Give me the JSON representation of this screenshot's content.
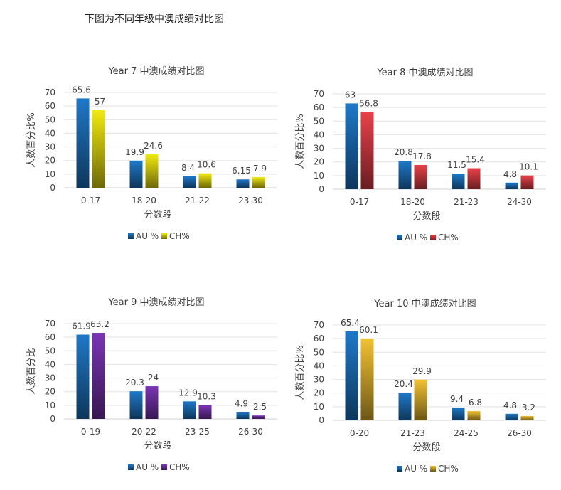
{
  "page_title": "下图为不同年级中澳成绩对比图",
  "colors": {
    "au": "#1F78C8",
    "ch_year7": "#F2EA10",
    "ch_year8": "#E8424A",
    "ch_year9": "#7B35B5",
    "ch_year10": "#F2C233"
  },
  "chart_data": [
    {
      "type": "bar",
      "title": "Year 7 中澳成绩对比图",
      "xlabel": "分数段",
      "ylabel": "人数百分比%",
      "ylim": [
        0,
        70
      ],
      "yticks": [
        0,
        10,
        20,
        30,
        40,
        50,
        60,
        70
      ],
      "grid": true,
      "legend_position": "bottom",
      "categories": [
        "0-17",
        "18-20",
        "21-22",
        "23-30"
      ],
      "series": [
        {
          "name": "AU %",
          "values": [
            65.6,
            19.9,
            8.4,
            6.15
          ],
          "labels": [
            "65.6",
            "19.9",
            "8.4",
            "6.15"
          ]
        },
        {
          "name": "CH%",
          "values": [
            57,
            24.6,
            10.6,
            7.9
          ],
          "labels": [
            "57",
            "24.6",
            "10.6",
            "7.9"
          ]
        }
      ]
    },
    {
      "type": "bar",
      "title": "Year 8 中澳成绩对比图",
      "xlabel": "分数段",
      "ylabel": "人数百分比%",
      "ylim": [
        0,
        70
      ],
      "yticks": [
        0,
        10,
        20,
        30,
        40,
        50,
        60,
        70
      ],
      "grid": true,
      "legend_position": "bottom",
      "categories": [
        "0-17",
        "18-20",
        "21-23",
        "24-30"
      ],
      "series": [
        {
          "name": "AU %",
          "values": [
            63,
            20.8,
            11.5,
            4.8
          ],
          "labels": [
            "63",
            "20.8",
            "11.5",
            "4.8"
          ]
        },
        {
          "name": "CH%",
          "values": [
            56.8,
            17.8,
            15.4,
            10.1
          ],
          "labels": [
            "56.8",
            "17.8",
            "15.4",
            "10.1"
          ]
        }
      ]
    },
    {
      "type": "bar",
      "title": "Year 9 中澳成绩对比图",
      "xlabel": "分数段",
      "ylabel": "人数百分比",
      "ylim": [
        0,
        70
      ],
      "yticks": [
        0,
        10,
        20,
        30,
        40,
        50,
        60,
        70
      ],
      "grid": true,
      "legend_position": "bottom",
      "categories": [
        "0-19",
        "20-22",
        "23-25",
        "26-30"
      ],
      "series": [
        {
          "name": "AU %",
          "values": [
            61.9,
            20.3,
            12.9,
            4.9
          ],
          "labels": [
            "61.9",
            "20.3",
            "12.9",
            "4.9"
          ]
        },
        {
          "name": "CH%",
          "values": [
            63.2,
            24,
            10.3,
            2.5
          ],
          "labels": [
            "63.2",
            "24",
            "10.3",
            "2.5"
          ]
        }
      ]
    },
    {
      "type": "bar",
      "title": "Year 10 中澳成绩对比图",
      "xlabel": "分数段",
      "ylabel": "人数百分比%",
      "ylim": [
        0,
        70
      ],
      "yticks": [
        0,
        10,
        20,
        30,
        40,
        50,
        60,
        70
      ],
      "grid": true,
      "legend_position": "bottom",
      "categories": [
        "0-20",
        "21-23",
        "24-25",
        "26-30"
      ],
      "series": [
        {
          "name": "AU %",
          "values": [
            65.4,
            20.4,
            9.4,
            4.8
          ],
          "labels": [
            "65.4",
            "20.4",
            "9.4",
            "4.8"
          ]
        },
        {
          "name": "CH%",
          "values": [
            60.1,
            29.9,
            6.8,
            3.2
          ],
          "labels": [
            "60.1",
            "29.9",
            "6.8",
            "3.2"
          ]
        }
      ]
    }
  ]
}
